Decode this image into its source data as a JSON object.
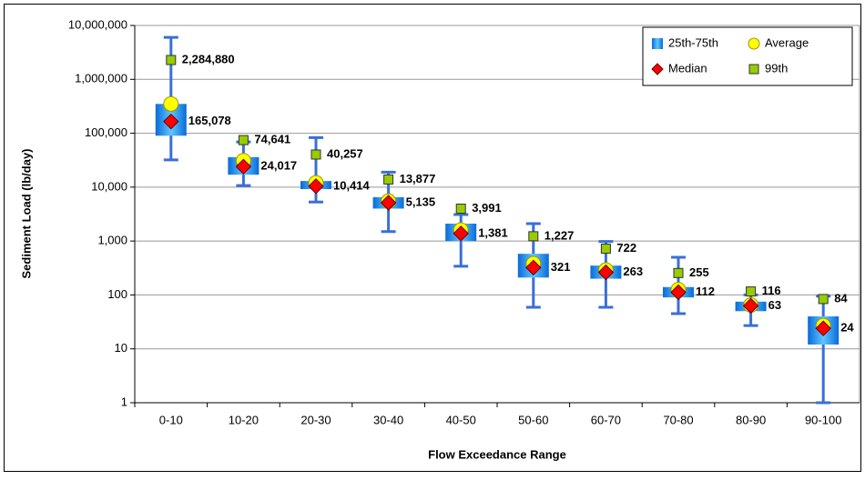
{
  "chart_data": {
    "type": "box",
    "y_label": "Sediment Load (lb/day)",
    "x_label": "Flow Exceedance Range",
    "log_scale": true,
    "grid": true,
    "legend_position": "upper right",
    "categories": [
      "0-10",
      "10-20",
      "20-30",
      "30-40",
      "40-50",
      "50-60",
      "60-70",
      "70-80",
      "80-90",
      "90-100"
    ],
    "ylim": [
      1,
      10000000
    ],
    "yticks": [
      1,
      10,
      100,
      {
        "value": 1000,
        "label": "1,000"
      },
      {
        "value": 10000,
        "label": "10,000"
      },
      {
        "value": 100000,
        "label": "100,000"
      },
      {
        "value": 1000000,
        "label": "1,000,000"
      },
      {
        "value": 10000000,
        "label": "10,000,000"
      }
    ],
    "whiskers": {
      "color": "#3a6fd6",
      "low": [
        32000,
        10700,
        5300,
        1500,
        340,
        59,
        59,
        45,
        27,
        1
      ],
      "high": [
        6000000,
        69000,
        83000,
        19000,
        3100,
        2100,
        980,
        500,
        100,
        95
      ]
    },
    "series": [
      {
        "name": "25th-75th",
        "color": "#1e90ff",
        "low": [
          90000,
          17000,
          9200,
          4000,
          1000,
          210,
          200,
          90,
          50,
          12
        ],
        "high": [
          350000,
          36000,
          13000,
          6500,
          2100,
          580,
          350,
          140,
          75,
          40
        ]
      },
      {
        "name": "Average",
        "color": "#ffff00",
        "values": [
          350000,
          31000,
          12000,
          5500,
          1600,
          380,
          290,
          125,
          65,
          27
        ]
      },
      {
        "name": "Median",
        "color": "#ff0000",
        "values": [
          165078,
          24017,
          10414,
          5135,
          1381,
          321,
          263,
          112,
          63,
          24
        ],
        "value_labels": [
          "165,078",
          "24,017",
          "10,414",
          "5,135",
          "1,381",
          "321",
          "263",
          "112",
          "63",
          "24"
        ]
      },
      {
        "name": "99th",
        "color": "#99cc00",
        "values": [
          2284880,
          74641,
          40257,
          13877,
          3991,
          1227,
          722,
          255,
          116,
          84
        ],
        "value_labels": [
          "2,284,880",
          "74,641",
          "40,257",
          "13,877",
          "3,991",
          "1,227",
          "722",
          "255",
          "116",
          "84"
        ]
      }
    ]
  }
}
